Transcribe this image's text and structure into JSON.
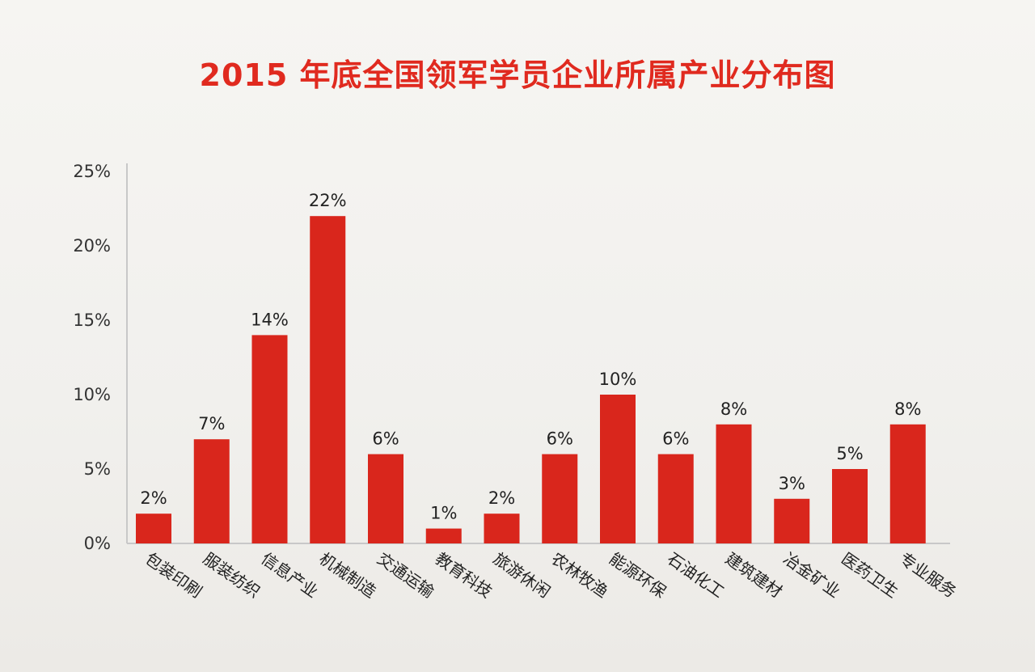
{
  "title": "2015 年底全国领军学员企业所属产业分布图",
  "colors": {
    "bar": "#d9261c",
    "title": "#e02a1f",
    "axis": "#c8c8c8"
  },
  "chart_data": {
    "type": "bar",
    "title": "2015 年底全国领军学员企业所属产业分布图",
    "xlabel": "",
    "ylabel": "",
    "ylim": [
      0,
      25
    ],
    "yticks": [
      0,
      5,
      10,
      15,
      20,
      25
    ],
    "ytick_labels": [
      "0%",
      "5%",
      "10%",
      "15%",
      "20%",
      "25%"
    ],
    "grid": false,
    "categories": [
      "包装印刷",
      "服装纺织",
      "信息产业",
      "机械制造",
      "交通运输",
      "教育科技",
      "旅游休闲",
      "农林牧渔",
      "能源环保",
      "石油化工",
      "建筑建材",
      "冶金矿业",
      "医药卫生",
      "专业服务"
    ],
    "values": [
      2,
      7,
      14,
      22,
      6,
      1,
      2,
      6,
      10,
      6,
      8,
      3,
      5,
      8
    ],
    "data_labels": [
      "2%",
      "7%",
      "14%",
      "22%",
      "6%",
      "1%",
      "2%",
      "6%",
      "10%",
      "6%",
      "8%",
      "3%",
      "5%",
      "8%"
    ]
  }
}
